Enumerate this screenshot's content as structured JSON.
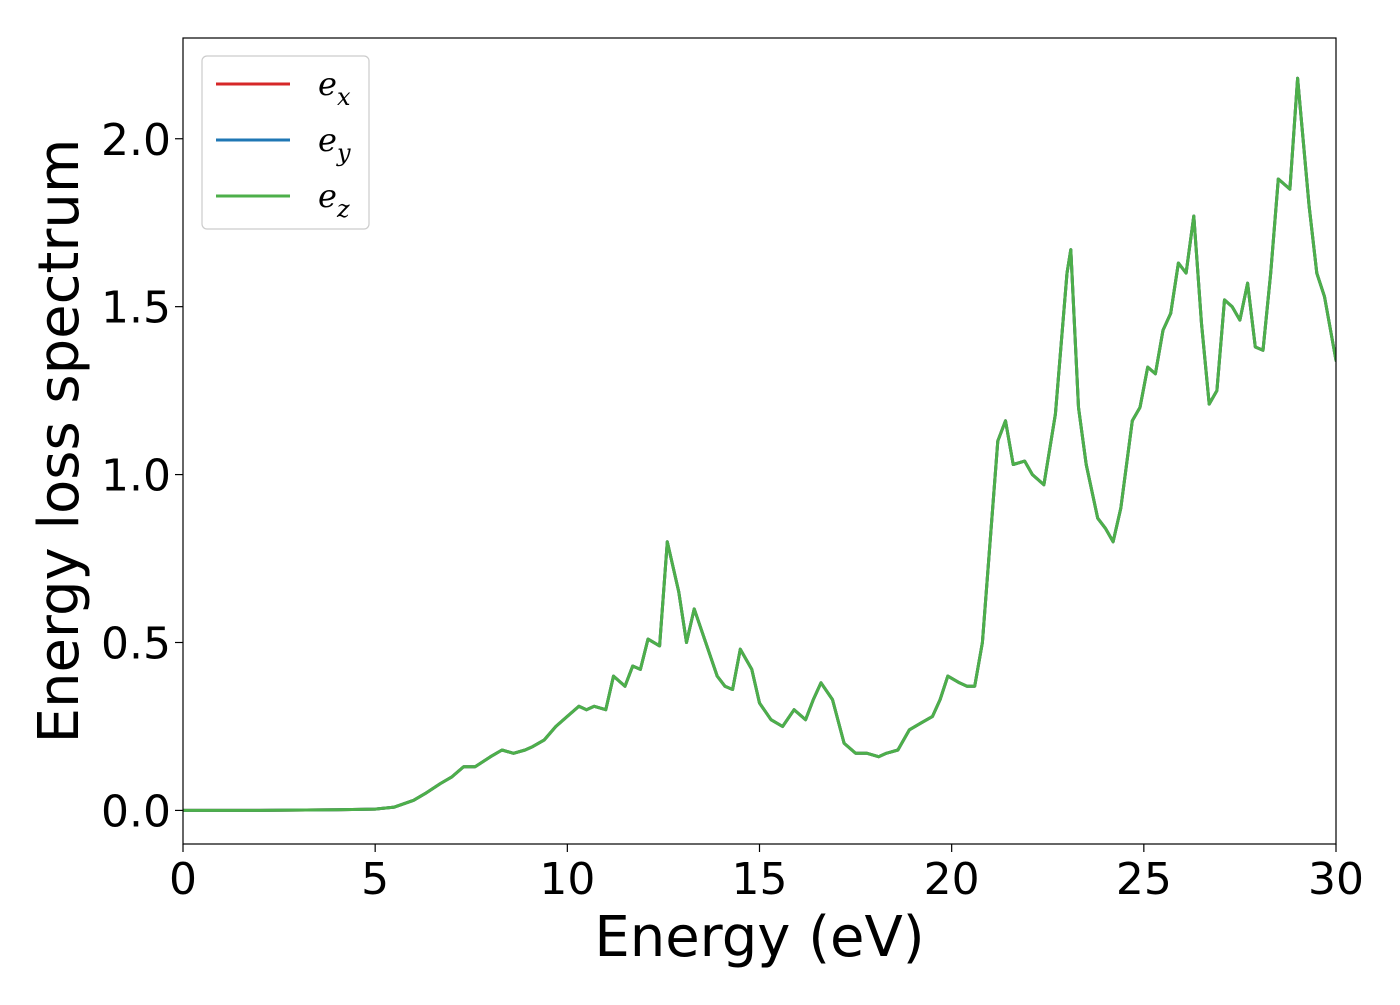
{
  "chart_data": {
    "type": "line",
    "title": "",
    "xlabel": "Energy (eV)",
    "ylabel": "Energy loss spectrum",
    "xlim": [
      0,
      30
    ],
    "ylim": [
      -0.1,
      2.3
    ],
    "xticks": [
      0,
      5,
      10,
      15,
      20,
      25,
      30
    ],
    "xtick_labels": [
      "0",
      "5",
      "10",
      "15",
      "20",
      "25",
      "30"
    ],
    "yticks": [
      0.0,
      0.5,
      1.0,
      1.5,
      2.0
    ],
    "ytick_labels": [
      "0.0",
      "0.5",
      "1.0",
      "1.5",
      "2.0"
    ],
    "grid": false,
    "legend_position": "top-left",
    "legend": [
      {
        "base": "e",
        "sub": "x",
        "color": "#d62728"
      },
      {
        "base": "e",
        "sub": "y",
        "color": "#1f77b4"
      },
      {
        "base": "e",
        "sub": "z",
        "color": "#4daf4a"
      }
    ],
    "x": [
      0,
      2,
      4,
      5,
      5.5,
      6,
      6.3,
      6.7,
      7,
      7.3,
      7.6,
      8,
      8.3,
      8.6,
      8.9,
      9.1,
      9.4,
      9.7,
      10,
      10.3,
      10.5,
      10.7,
      11,
      11.2,
      11.5,
      11.7,
      11.9,
      12.1,
      12.4,
      12.6,
      12.9,
      13.1,
      13.3,
      13.6,
      13.9,
      14.1,
      14.3,
      14.5,
      14.8,
      15.0,
      15.3,
      15.6,
      15.9,
      16.2,
      16.4,
      16.6,
      16.9,
      17.2,
      17.5,
      17.8,
      18.1,
      18.3,
      18.6,
      18.9,
      19.2,
      19.5,
      19.7,
      19.9,
      20.2,
      20.4,
      20.6,
      20.8,
      21.0,
      21.2,
      21.4,
      21.6,
      21.9,
      22.1,
      22.4,
      22.7,
      23.0,
      23.1,
      23.3,
      23.5,
      23.8,
      24.0,
      24.2,
      24.4,
      24.7,
      24.9,
      25.1,
      25.3,
      25.5,
      25.7,
      25.9,
      26.1,
      26.3,
      26.5,
      26.7,
      26.9,
      27.1,
      27.3,
      27.5,
      27.7,
      27.9,
      28.1,
      28.3,
      28.5,
      28.8,
      29.0,
      29.3,
      29.5,
      29.7,
      30.0
    ],
    "series": [
      {
        "name": "e_x",
        "color": "#d62728",
        "values": [
          0,
          0,
          0.002,
          0.004,
          0.01,
          0.03,
          0.05,
          0.08,
          0.1,
          0.13,
          0.13,
          0.16,
          0.18,
          0.17,
          0.18,
          0.19,
          0.21,
          0.25,
          0.28,
          0.31,
          0.3,
          0.31,
          0.3,
          0.4,
          0.37,
          0.43,
          0.42,
          0.51,
          0.49,
          0.8,
          0.65,
          0.5,
          0.6,
          0.5,
          0.4,
          0.37,
          0.36,
          0.48,
          0.42,
          0.32,
          0.27,
          0.25,
          0.3,
          0.27,
          0.33,
          0.38,
          0.33,
          0.2,
          0.17,
          0.17,
          0.16,
          0.17,
          0.18,
          0.24,
          0.26,
          0.28,
          0.33,
          0.4,
          0.38,
          0.37,
          0.37,
          0.5,
          0.8,
          1.1,
          1.16,
          1.03,
          1.04,
          1.0,
          0.97,
          1.18,
          1.6,
          1.67,
          1.2,
          1.03,
          0.87,
          0.84,
          0.8,
          0.9,
          1.16,
          1.2,
          1.32,
          1.3,
          1.43,
          1.48,
          1.63,
          1.6,
          1.77,
          1.45,
          1.21,
          1.25,
          1.52,
          1.5,
          1.46,
          1.57,
          1.38,
          1.37,
          1.6,
          1.88,
          1.85,
          2.18,
          1.8,
          1.6,
          1.53,
          1.34
        ]
      },
      {
        "name": "e_y",
        "color": "#1f77b4",
        "values": [
          0,
          0,
          0.002,
          0.004,
          0.01,
          0.03,
          0.05,
          0.08,
          0.1,
          0.13,
          0.13,
          0.16,
          0.18,
          0.17,
          0.18,
          0.19,
          0.21,
          0.25,
          0.28,
          0.31,
          0.3,
          0.31,
          0.3,
          0.4,
          0.37,
          0.43,
          0.42,
          0.51,
          0.49,
          0.8,
          0.65,
          0.5,
          0.6,
          0.5,
          0.4,
          0.37,
          0.36,
          0.48,
          0.42,
          0.32,
          0.27,
          0.25,
          0.3,
          0.27,
          0.33,
          0.38,
          0.33,
          0.2,
          0.17,
          0.17,
          0.16,
          0.17,
          0.18,
          0.24,
          0.26,
          0.28,
          0.33,
          0.4,
          0.38,
          0.37,
          0.37,
          0.5,
          0.8,
          1.1,
          1.16,
          1.03,
          1.04,
          1.0,
          0.97,
          1.18,
          1.6,
          1.67,
          1.2,
          1.03,
          0.87,
          0.84,
          0.8,
          0.9,
          1.16,
          1.2,
          1.32,
          1.3,
          1.43,
          1.48,
          1.63,
          1.6,
          1.77,
          1.45,
          1.21,
          1.25,
          1.52,
          1.5,
          1.46,
          1.57,
          1.38,
          1.37,
          1.6,
          1.88,
          1.85,
          2.18,
          1.8,
          1.6,
          1.53,
          1.34
        ]
      },
      {
        "name": "e_z",
        "color": "#4daf4a",
        "values": [
          0,
          0,
          0.002,
          0.004,
          0.01,
          0.03,
          0.05,
          0.08,
          0.1,
          0.13,
          0.13,
          0.16,
          0.18,
          0.17,
          0.18,
          0.19,
          0.21,
          0.25,
          0.28,
          0.31,
          0.3,
          0.31,
          0.3,
          0.4,
          0.37,
          0.43,
          0.42,
          0.51,
          0.49,
          0.8,
          0.65,
          0.5,
          0.6,
          0.5,
          0.4,
          0.37,
          0.36,
          0.48,
          0.42,
          0.32,
          0.27,
          0.25,
          0.3,
          0.27,
          0.33,
          0.38,
          0.33,
          0.2,
          0.17,
          0.17,
          0.16,
          0.17,
          0.18,
          0.24,
          0.26,
          0.28,
          0.33,
          0.4,
          0.38,
          0.37,
          0.37,
          0.5,
          0.8,
          1.1,
          1.16,
          1.03,
          1.04,
          1.0,
          0.97,
          1.18,
          1.6,
          1.67,
          1.2,
          1.03,
          0.87,
          0.84,
          0.8,
          0.9,
          1.16,
          1.2,
          1.32,
          1.3,
          1.43,
          1.48,
          1.63,
          1.6,
          1.77,
          1.45,
          1.21,
          1.25,
          1.52,
          1.5,
          1.46,
          1.57,
          1.38,
          1.37,
          1.6,
          1.88,
          1.85,
          2.18,
          1.8,
          1.6,
          1.53,
          1.34
        ]
      }
    ]
  }
}
